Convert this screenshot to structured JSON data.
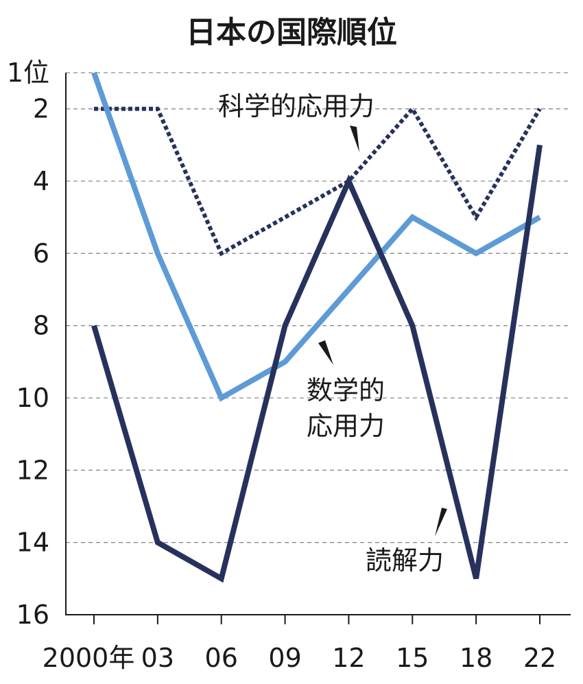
{
  "chart_data": {
    "type": "line",
    "title": "日本の国際順位",
    "x": [
      "2000年",
      "03",
      "06",
      "09",
      "12",
      "15",
      "18",
      "22"
    ],
    "y_ticks": [
      "1位",
      "2",
      "4",
      "6",
      "8",
      "10",
      "12",
      "14",
      "16"
    ],
    "ylim": [
      1,
      16
    ],
    "y_inverted": true,
    "grid": "dashed horizontal",
    "series": [
      {
        "name": "科学的応用力",
        "values": [
          2,
          2,
          6,
          5,
          4,
          2,
          5,
          2
        ],
        "color": "#26325c",
        "style": "dotted"
      },
      {
        "name": "数学的応用力",
        "values": [
          1,
          6,
          10,
          9,
          7,
          5,
          6,
          5
        ],
        "color": "#5d9bd6",
        "style": "solid"
      },
      {
        "name": "読解力",
        "values": [
          8,
          14,
          15,
          8,
          4,
          8,
          15,
          3
        ],
        "color": "#26325c",
        "style": "solid"
      }
    ]
  }
}
